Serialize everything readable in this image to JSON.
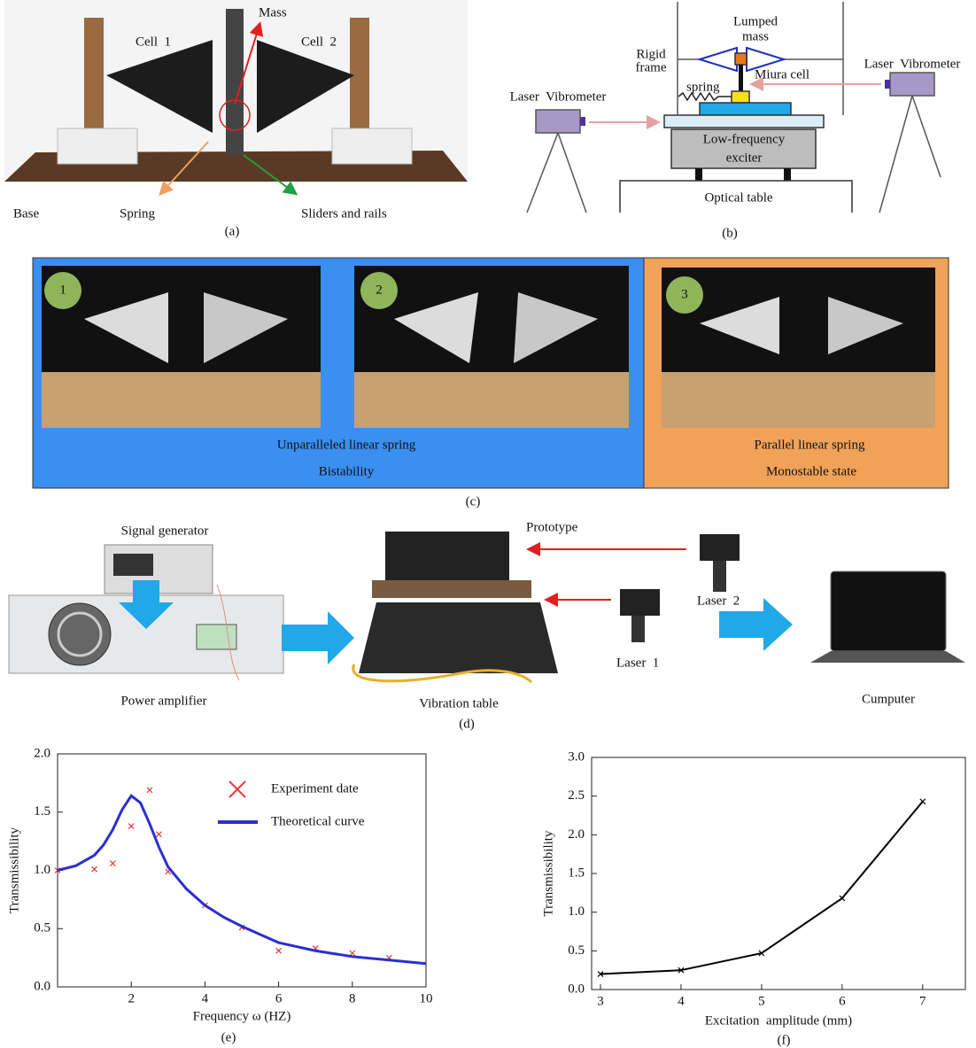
{
  "panel_a": {
    "labels": [
      "Mass",
      "Cell  1",
      "Cell  2",
      "Base",
      "Spring",
      "Sliders and rails"
    ],
    "caption": "(a)"
  },
  "panel_b": {
    "labels": [
      "Lumped",
      "mass",
      "Rigid",
      "frame",
      "Miura cell",
      "spring",
      "Laser  Vibrometer",
      "Laser  Vibrometer",
      "Low-frequency",
      "exciter",
      "Optical table"
    ],
    "caption": "(b)"
  },
  "panel_c": {
    "badges": [
      "1",
      "2",
      "3"
    ],
    "labels": [
      "Unparalleled linear spring",
      "Bistability",
      "Parallel linear spring",
      "Monostable state"
    ],
    "caption": "(c)"
  },
  "panel_d": {
    "labels": [
      "Signal generator",
      "Prototype",
      "Laser  2",
      "Laser  1",
      "Power amplifier",
      "Vibration table",
      "Cumputer"
    ],
    "caption": "(d)"
  },
  "chart_data": [
    {
      "type": "line",
      "xlabel": "Frequency ω (HZ)",
      "ylabel": "Transmissibility",
      "caption": "(e)",
      "xlim": [
        0,
        10
      ],
      "ylim": [
        0,
        2.0
      ],
      "xticks": [
        2,
        4,
        6,
        8,
        10
      ],
      "yticks": [
        {
          "value": 0,
          "label": "0.0"
        },
        0.5,
        {
          "value": 1,
          "label": "1.0"
        },
        1.5,
        {
          "value": 2,
          "label": "2.0"
        }
      ],
      "legend": "upper right",
      "series": [
        {
          "name": "Experiment date",
          "type": "scatter",
          "color": "#e8383a",
          "x": [
            0,
            1,
            1.5,
            2,
            2.5,
            2.75,
            3,
            4,
            5,
            6,
            7,
            8,
            9
          ],
          "values": [
            1.0,
            1.01,
            1.06,
            1.38,
            1.69,
            1.31,
            0.99,
            0.7,
            0.51,
            0.31,
            0.33,
            0.29,
            0.25
          ]
        },
        {
          "name": "Theoretical curve",
          "type": "line",
          "color": "#2a2fd0",
          "x": [
            0,
            0.5,
            1,
            1.25,
            1.5,
            1.75,
            2,
            2.25,
            2.5,
            2.75,
            3,
            3.5,
            4,
            4.5,
            5,
            5.5,
            6,
            7,
            8,
            9,
            10
          ],
          "values": [
            1.0,
            1.04,
            1.13,
            1.22,
            1.35,
            1.52,
            1.64,
            1.58,
            1.4,
            1.2,
            1.03,
            0.84,
            0.7,
            0.6,
            0.52,
            0.45,
            0.38,
            0.31,
            0.26,
            0.23,
            0.2
          ]
        }
      ]
    },
    {
      "type": "line",
      "xlabel": "Excitation  amplitude (mm)",
      "ylabel": "Transmissibility",
      "caption": "(f)",
      "xlim": [
        2.89,
        7.53
      ],
      "ylim": [
        0,
        3.0
      ],
      "xticks": [
        3,
        4,
        5,
        6,
        7
      ],
      "yticks": [
        {
          "value": 0,
          "label": "0.0"
        },
        0.5,
        {
          "value": 1,
          "label": "1.0"
        },
        1.5,
        {
          "value": 2,
          "label": "2.0"
        },
        2.5,
        {
          "value": 3,
          "label": "3.0"
        }
      ],
      "color": "#000000",
      "markers": true,
      "x": [
        3,
        4,
        5,
        6,
        7
      ],
      "values": [
        0.2,
        0.25,
        0.47,
        1.18,
        2.43
      ]
    }
  ]
}
